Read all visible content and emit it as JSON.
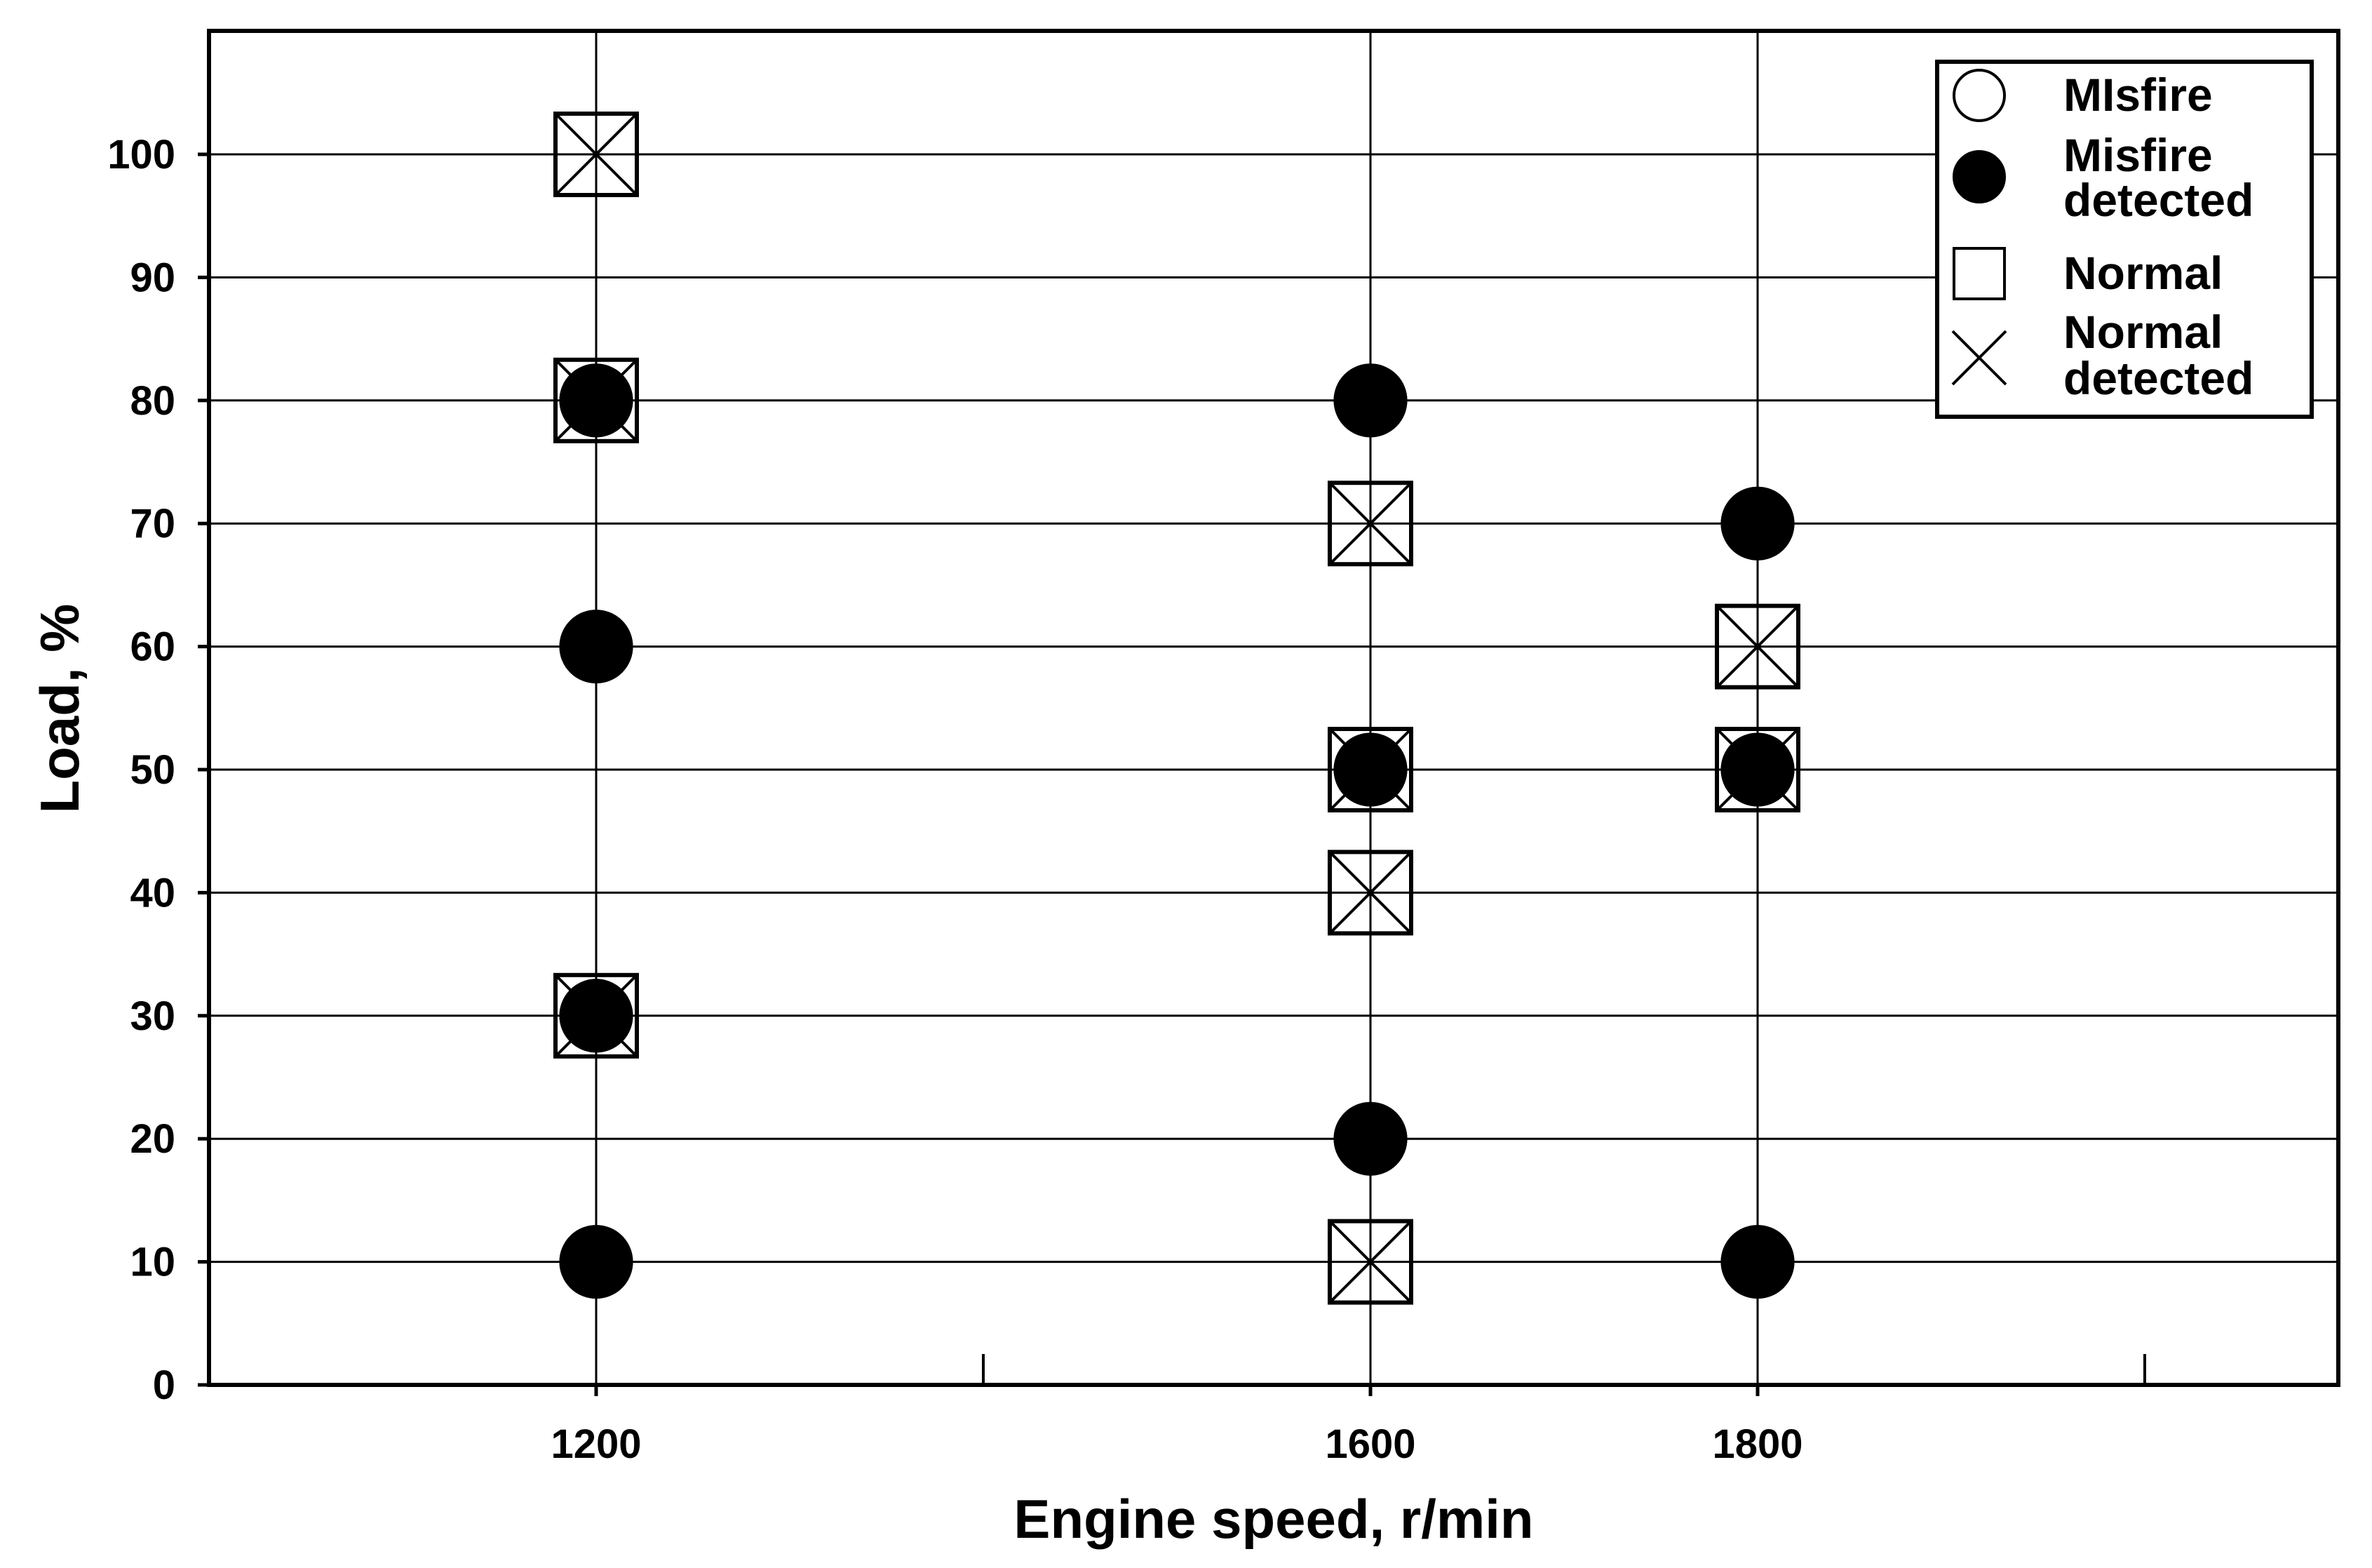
{
  "chart_data": {
    "type": "scatter",
    "xlabel": "Engine speed, r/min",
    "ylabel": "Load, %",
    "xlim": [
      1000,
      2100
    ],
    "ylim": [
      0,
      100
    ],
    "x_ticks": [
      1200,
      1600,
      1800
    ],
    "x_minor_ticks": [
      1400,
      2000
    ],
    "y_ticks": [
      0,
      10,
      20,
      30,
      40,
      50,
      60,
      70,
      80,
      90,
      100
    ],
    "grid": true,
    "legend_position": "top-right",
    "series": [
      {
        "name": "MIsfire",
        "marker": "open-circle",
        "points": [
          [
            1200,
            80
          ],
          [
            1200,
            60
          ],
          [
            1200,
            30
          ],
          [
            1200,
            10
          ],
          [
            1600,
            80
          ],
          [
            1600,
            50
          ],
          [
            1600,
            20
          ],
          [
            1800,
            70
          ],
          [
            1800,
            50
          ],
          [
            1800,
            10
          ]
        ]
      },
      {
        "name": "Misfire detected",
        "name_lines": [
          "Misfire",
          "detected"
        ],
        "marker": "filled-circle",
        "points": [
          [
            1200,
            80
          ],
          [
            1200,
            60
          ],
          [
            1200,
            30
          ],
          [
            1200,
            10
          ],
          [
            1600,
            80
          ],
          [
            1600,
            50
          ],
          [
            1600,
            20
          ],
          [
            1800,
            70
          ],
          [
            1800,
            50
          ],
          [
            1800,
            10
          ]
        ]
      },
      {
        "name": "Normal",
        "marker": "open-square",
        "points": [
          [
            1200,
            100
          ],
          [
            1200,
            80
          ],
          [
            1200,
            30
          ],
          [
            1600,
            70
          ],
          [
            1600,
            50
          ],
          [
            1600,
            40
          ],
          [
            1600,
            10
          ],
          [
            1800,
            60
          ],
          [
            1800,
            50
          ]
        ]
      },
      {
        "name": "Normal detected",
        "name_lines": [
          "Normal",
          "detected"
        ],
        "marker": "x",
        "points": [
          [
            1200,
            100
          ],
          [
            1200,
            80
          ],
          [
            1200,
            30
          ],
          [
            1600,
            70
          ],
          [
            1600,
            50
          ],
          [
            1600,
            40
          ],
          [
            1600,
            10
          ],
          [
            1800,
            60
          ],
          [
            1800,
            50
          ]
        ]
      }
    ],
    "colors": {
      "ink": "#000000",
      "background": "#ffffff",
      "grid": "#000000"
    }
  }
}
